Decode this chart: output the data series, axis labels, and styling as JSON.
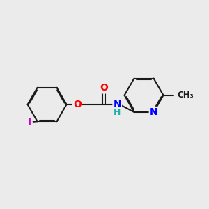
{
  "background_color": "#ebebeb",
  "bond_color": "#1a1a1a",
  "bond_width": 1.5,
  "dbo": 0.055,
  "atom_colors": {
    "O": "#ff0000",
    "N": "#0000ff",
    "I": "#cc00cc",
    "H": "#20b2aa",
    "C": "#1a1a1a"
  },
  "font_size": 9
}
